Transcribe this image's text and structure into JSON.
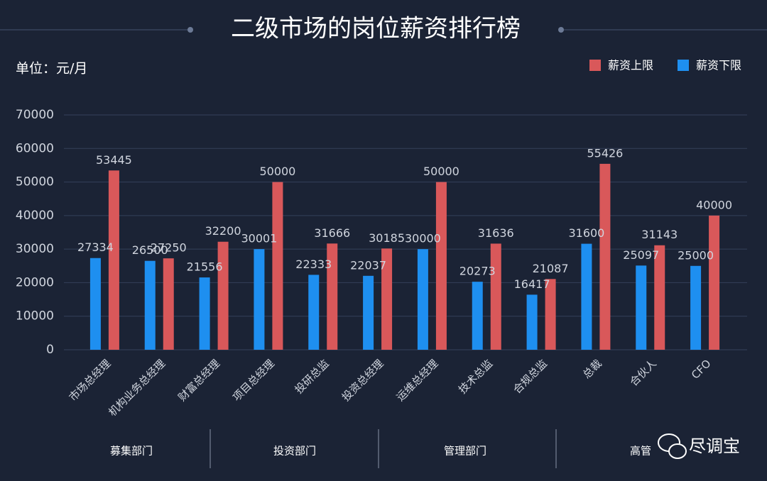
{
  "chart_data": {
    "type": "bar",
    "title": "二级市场的岗位薪资排行榜",
    "unit_label": "单位：元/月",
    "categories": [
      "市场总经理",
      "机构业务总经理",
      "财富总经理",
      "项目总经理",
      "投研总监",
      "投资总经理",
      "运维总经理",
      "技术总监",
      "合规总监",
      "总裁",
      "合伙人",
      "CFO"
    ],
    "series": [
      {
        "name": "薪资上限",
        "color": "#d9585a",
        "values": [
          53445,
          27250,
          32200,
          50000,
          31666,
          30185,
          50000,
          31636,
          21087,
          55426,
          31143,
          40000
        ]
      },
      {
        "name": "薪资下限",
        "color": "#1e8ff0",
        "values": [
          27334,
          26500,
          21556,
          30001,
          22333,
          22037,
          30000,
          20273,
          16417,
          31600,
          25097,
          25000
        ]
      }
    ],
    "ylim": [
      0,
      70000
    ],
    "yticks": [
      0,
      10000,
      20000,
      30000,
      40000,
      50000,
      60000,
      70000
    ],
    "grid": true,
    "legend": "top-right",
    "departments": [
      "募集部门",
      "投资部门",
      "管理部门",
      "高管"
    ],
    "watermark": "尽调宝"
  }
}
